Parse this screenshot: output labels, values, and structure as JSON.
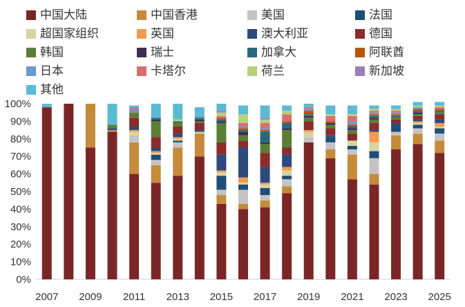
{
  "chart_data": {
    "type": "bar",
    "stacked": true,
    "categories": [
      "2007",
      "2008",
      "2009",
      "2010",
      "2011",
      "2012",
      "2013",
      "2014",
      "2015",
      "2016",
      "2017",
      "2018",
      "2019",
      "2020",
      "2021",
      "2022",
      "2023",
      "2024",
      "2025"
    ],
    "x_tick_labels": [
      "2007",
      "2009",
      "2011",
      "2013",
      "2015",
      "2017",
      "2019",
      "2021",
      "2023",
      "2025"
    ],
    "y_tick_labels": [
      "0%",
      "10%",
      "20%",
      "30%",
      "40%",
      "50%",
      "60%",
      "70%",
      "80%",
      "90%",
      "100%"
    ],
    "ylim": [
      0,
      100
    ],
    "legend_position": "top",
    "series": [
      {
        "name": "中国大陆",
        "color": "#7b2626",
        "values": [
          98,
          100,
          75,
          84,
          60,
          55,
          59,
          70,
          43,
          40,
          41,
          49,
          78,
          69,
          57,
          54,
          74,
          77,
          72
        ]
      },
      {
        "name": "中国香港",
        "color": "#c58b3a",
        "values": [
          0,
          0,
          25,
          1,
          18,
          10,
          16,
          13,
          5,
          3,
          4,
          4,
          0,
          5,
          14,
          6,
          8,
          6,
          7
        ]
      },
      {
        "name": "美国",
        "color": "#c4c4c4",
        "values": [
          0,
          0,
          0,
          0,
          4,
          3,
          3,
          0,
          3,
          8,
          3,
          4,
          3,
          4,
          3,
          9,
          2,
          3,
          4
        ]
      },
      {
        "name": "法国",
        "color": "#1e4e75",
        "values": [
          0,
          0,
          0,
          0,
          0,
          3,
          1,
          0,
          8,
          3,
          4,
          2,
          0,
          3,
          2,
          4,
          3,
          2,
          3
        ]
      },
      {
        "name": "超国家组织",
        "color": "#d9d3a0",
        "values": [
          0,
          0,
          0,
          0,
          2,
          1,
          1,
          1,
          2,
          1,
          2,
          3,
          3,
          0,
          3,
          5,
          0,
          1,
          1
        ]
      },
      {
        "name": "英国",
        "color": "#f49b4e",
        "values": [
          0,
          0,
          0,
          0,
          1,
          1,
          1,
          0,
          1,
          3,
          1,
          2,
          1,
          0,
          0,
          6,
          0,
          1,
          2
        ]
      },
      {
        "name": "澳大利亚",
        "color": "#2d4a7c",
        "values": [
          0,
          0,
          0,
          1,
          2,
          2,
          2,
          1,
          9,
          17,
          9,
          7,
          0,
          1,
          0,
          1,
          2,
          1,
          2
        ]
      },
      {
        "name": "德国",
        "color": "#8b2b2b",
        "values": [
          0,
          0,
          0,
          0,
          5,
          6,
          4,
          4,
          7,
          4,
          8,
          4,
          5,
          4,
          4,
          4,
          2,
          2,
          3
        ]
      },
      {
        "name": "韩国",
        "color": "#5b7f35",
        "values": [
          0,
          0,
          0,
          2,
          3,
          9,
          2,
          1,
          11,
          3,
          5,
          10,
          2,
          2,
          2,
          2,
          1,
          1,
          1
        ]
      },
      {
        "name": "瑞士",
        "color": "#3e2f55",
        "values": [
          0,
          0,
          0,
          0,
          0,
          1,
          0,
          1,
          1,
          2,
          1,
          1,
          1,
          1,
          1,
          1,
          0,
          1,
          0
        ]
      },
      {
        "name": "加拿大",
        "color": "#28697e",
        "values": [
          0,
          0,
          0,
          0,
          0,
          1,
          1,
          1,
          1,
          1,
          6,
          3,
          1,
          0,
          1,
          1,
          1,
          1,
          1
        ]
      },
      {
        "name": "阿联酋",
        "color": "#b85411",
        "values": [
          0,
          0,
          0,
          0,
          0,
          0,
          0,
          0,
          1,
          1,
          1,
          1,
          2,
          1,
          1,
          1,
          1,
          1,
          1
        ]
      },
      {
        "name": "日本",
        "color": "#6f98cc",
        "values": [
          0,
          0,
          0,
          0,
          0,
          0,
          0,
          1,
          0,
          1,
          1,
          0,
          1,
          0,
          2,
          1,
          1,
          1,
          0
        ]
      },
      {
        "name": "卡塔尔",
        "color": "#d86f6f",
        "values": [
          0,
          0,
          0,
          0,
          0,
          0,
          0,
          0,
          1,
          2,
          3,
          4,
          1,
          3,
          3,
          1,
          1,
          0,
          1
        ]
      },
      {
        "name": "荷兰",
        "color": "#b7d17c",
        "values": [
          0,
          0,
          0,
          0,
          0,
          0,
          1,
          0,
          2,
          5,
          2,
          2,
          0,
          1,
          1,
          1,
          1,
          1,
          1
        ]
      },
      {
        "name": "新加坡",
        "color": "#9a80b8",
        "values": [
          0,
          0,
          0,
          0,
          3,
          0,
          0,
          0,
          1,
          0,
          1,
          0,
          0,
          0,
          0,
          0,
          0,
          0,
          0
        ]
      },
      {
        "name": "其他",
        "color": "#5bbad4",
        "values": [
          2,
          0,
          0,
          12,
          1,
          8,
          9,
          5,
          4,
          5,
          7,
          3,
          2,
          5,
          5,
          2,
          2,
          2,
          2
        ]
      }
    ]
  }
}
